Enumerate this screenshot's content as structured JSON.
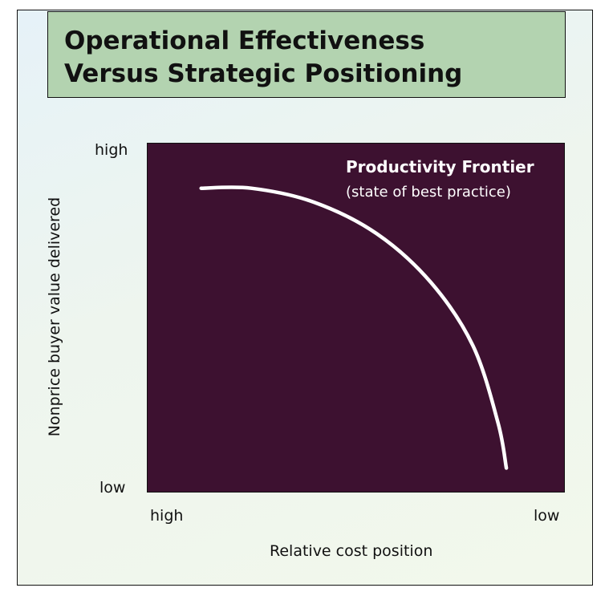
{
  "title": {
    "line1": "Operational Effectiveness",
    "line2": "Versus Strategic Positioning"
  },
  "chart_data": {
    "type": "line",
    "title": "",
    "xlabel": "Relative cost position",
    "ylabel": "Nonprice buyer value delivered",
    "x_ticks": [
      "high",
      "low"
    ],
    "y_ticks": [
      "high",
      "low"
    ],
    "annotation": {
      "title": "Productivity Frontier",
      "subtitle": "(state of best practice)"
    },
    "series": [
      {
        "name": "Productivity Frontier",
        "x": [
          0.13,
          0.25,
          0.4,
          0.55,
          0.68,
          0.78,
          0.84,
          0.86
        ],
        "y": [
          0.87,
          0.87,
          0.83,
          0.74,
          0.6,
          0.42,
          0.2,
          0.07
        ]
      }
    ],
    "xlim": [
      0,
      1
    ],
    "ylim": [
      0,
      1
    ],
    "grid": false,
    "colors": {
      "plot_background": "#3d1130",
      "curve": "#ffffff",
      "title_box": "#b3d3b0"
    }
  }
}
